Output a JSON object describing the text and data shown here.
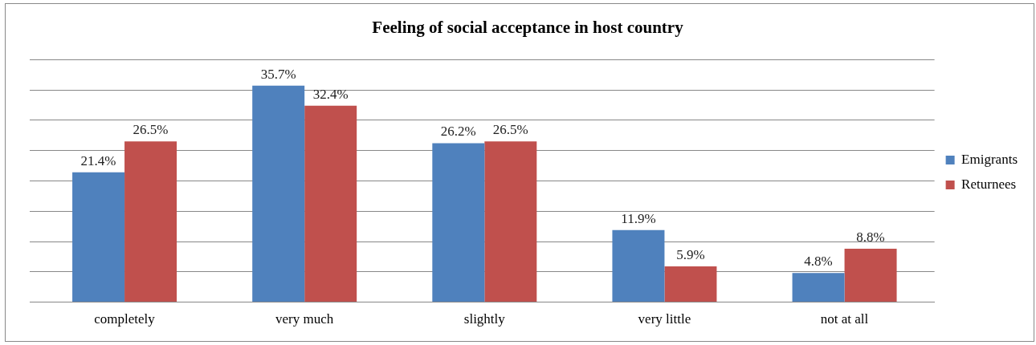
{
  "chart_data": {
    "type": "bar",
    "title": "Feeling of social acceptance in host country",
    "categories": [
      "completely",
      "very much",
      "slightly",
      "very little",
      "not at all"
    ],
    "series": [
      {
        "name": "Emigrants",
        "color": "#4f81bd",
        "values": [
          21.4,
          35.7,
          26.2,
          11.9,
          4.8
        ],
        "value_labels": [
          "21.4%",
          "35.7%",
          "26.2%",
          "11.9%",
          "4.8%"
        ]
      },
      {
        "name": "Returnees",
        "color": "#c0504d",
        "values": [
          26.5,
          32.4,
          26.5,
          5.9,
          8.8
        ],
        "value_labels": [
          "26.5%",
          "32.4%",
          "26.5%",
          "5.9%",
          "8.8%"
        ]
      }
    ],
    "ylim": [
      0,
      40
    ],
    "yticks": [
      {
        "value": 0,
        "label": null
      },
      {
        "value": 5,
        "label": null
      },
      {
        "value": 10,
        "label": null
      },
      {
        "value": 15,
        "label": null
      },
      {
        "value": 20,
        "label": null
      },
      {
        "value": 25,
        "label": null
      },
      {
        "value": 30,
        "label": null
      },
      {
        "value": 35,
        "label": null
      },
      {
        "value": 40,
        "label": null
      }
    ],
    "tick_labels": "x",
    "grid": "y",
    "legend": "right"
  }
}
